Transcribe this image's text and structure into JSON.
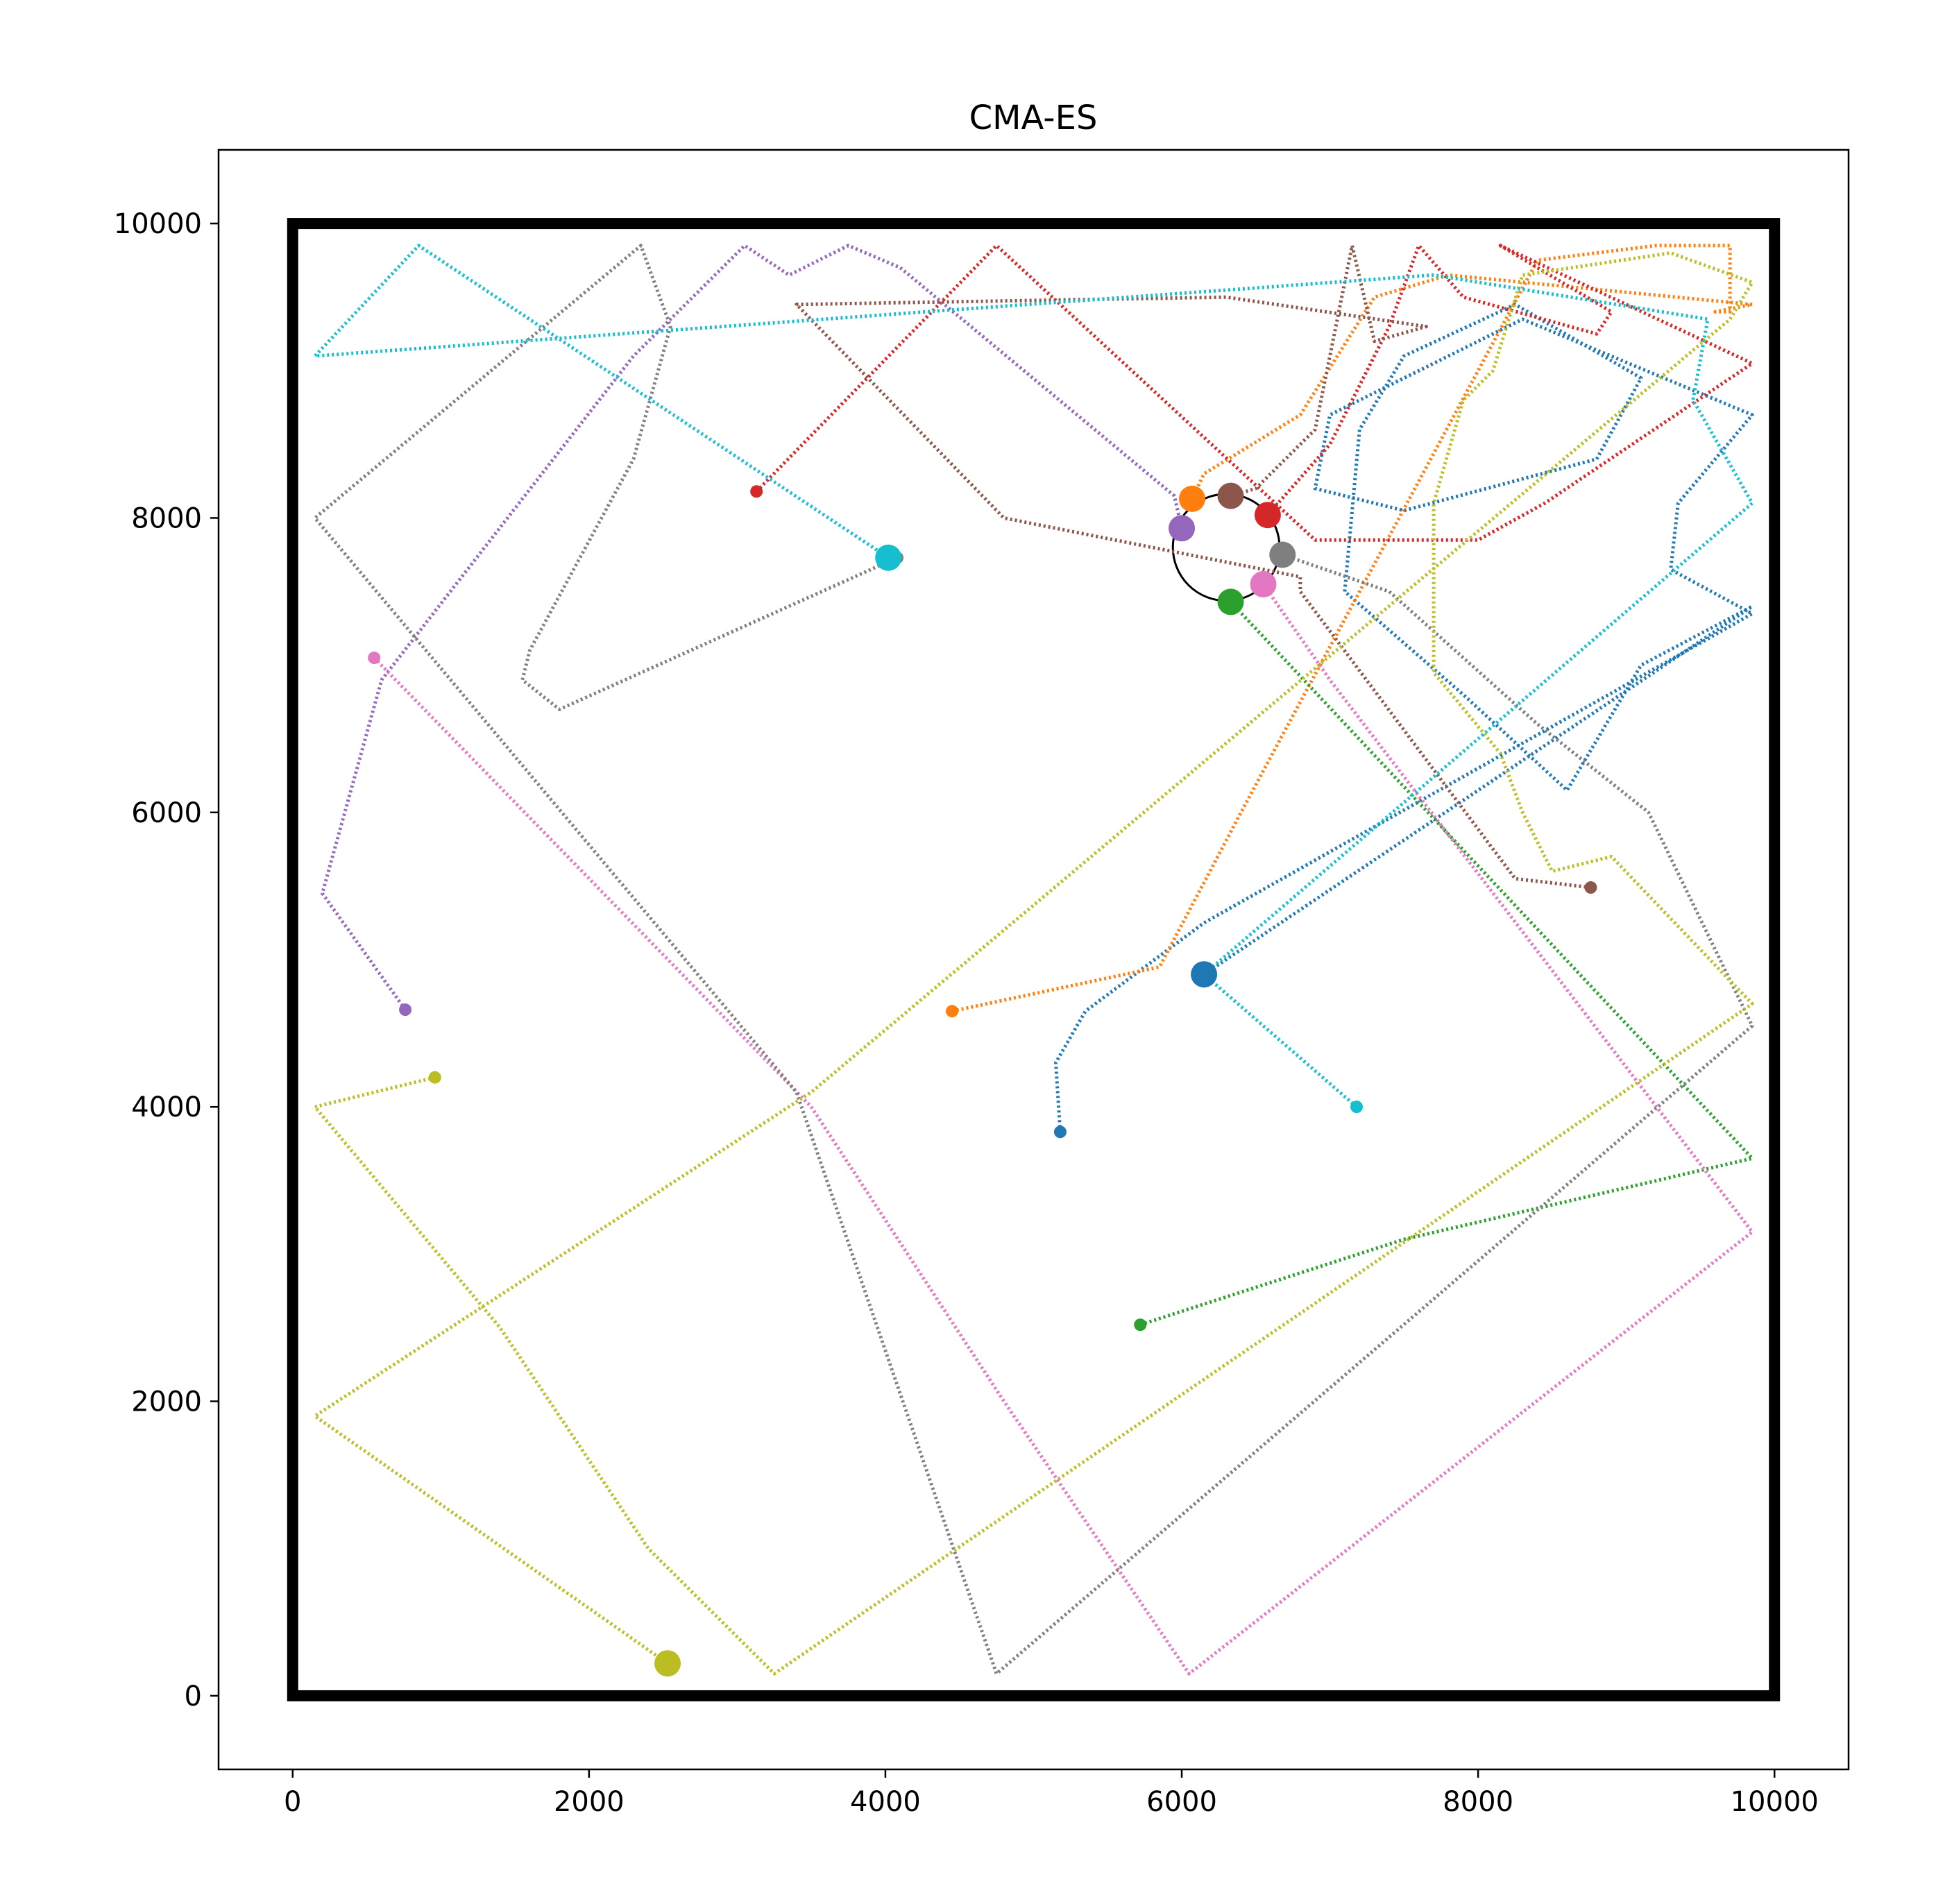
{
  "chart_data": {
    "type": "line",
    "title": "CMA-ES",
    "xlabel": "",
    "ylabel": "",
    "xlim": [
      -500,
      10500
    ],
    "ylim": [
      -500,
      10500
    ],
    "xticks": [
      0,
      2000,
      4000,
      6000,
      8000,
      10000
    ],
    "yticks": [
      0,
      2000,
      4000,
      6000,
      8000,
      10000
    ],
    "x_tick_labels": [
      "0",
      "2000",
      "4000",
      "6000",
      "8000",
      "10000"
    ],
    "y_tick_labels": [
      "0",
      "2000",
      "4000",
      "6000",
      "8000",
      "10000"
    ],
    "grid": false,
    "legend": "none",
    "arena": {
      "x": [
        0,
        10000
      ],
      "y": [
        0,
        10000
      ],
      "color": "#000000"
    },
    "target_circle": {
      "center": [
        6300,
        7800
      ],
      "radius": 360,
      "color": "#000000"
    },
    "series": [
      {
        "color": "#1f77b4",
        "start": [
          5180,
          3830
        ],
        "end": [
          6150,
          4900
        ],
        "path": [
          [
            5180,
            3830
          ],
          [
            5150,
            4300
          ],
          [
            5350,
            4650
          ],
          [
            6150,
            5250
          ],
          [
            9850,
            7350
          ],
          [
            9300,
            7650
          ],
          [
            9350,
            8100
          ],
          [
            9850,
            8700
          ],
          [
            8300,
            9350
          ],
          [
            7000,
            8700
          ],
          [
            6900,
            8200
          ],
          [
            7500,
            8050
          ],
          [
            8800,
            8400
          ],
          [
            9100,
            8950
          ],
          [
            8250,
            9450
          ],
          [
            7500,
            9100
          ],
          [
            7200,
            8600
          ],
          [
            7100,
            7500
          ],
          [
            7900,
            6800
          ],
          [
            8600,
            6150
          ],
          [
            9100,
            7000
          ],
          [
            9850,
            7400
          ],
          [
            6150,
            4900
          ]
        ]
      },
      {
        "color": "#ff7f0e",
        "start": [
          4450,
          4650
        ],
        "end": [
          6070,
          8130
        ],
        "path": [
          [
            4450,
            4650
          ],
          [
            5850,
            4950
          ],
          [
            6400,
            6000
          ],
          [
            8400,
            9750
          ],
          [
            9200,
            9850
          ],
          [
            9700,
            9850
          ],
          [
            9700,
            9400
          ],
          [
            9600,
            9400
          ],
          [
            9850,
            9450
          ],
          [
            7800,
            9650
          ],
          [
            7300,
            9500
          ],
          [
            6800,
            8700
          ],
          [
            6150,
            8300
          ],
          [
            6070,
            8130
          ]
        ]
      },
      {
        "color": "#2ca02c",
        "start": [
          5720,
          2520
        ],
        "end": [
          6330,
          7430
        ],
        "path": [
          [
            5720,
            2520
          ],
          [
            7500,
            3100
          ],
          [
            9850,
            3650
          ],
          [
            6330,
            7430
          ]
        ]
      },
      {
        "color": "#d62728",
        "start": [
          3130,
          8180
        ],
        "end": [
          6580,
          8020
        ],
        "path": [
          [
            3130,
            8180
          ],
          [
            4750,
            9850
          ],
          [
            6900,
            7850
          ],
          [
            8000,
            7850
          ],
          [
            8450,
            8100
          ],
          [
            9850,
            9050
          ],
          [
            8150,
            9850
          ],
          [
            8900,
            9400
          ],
          [
            8800,
            9250
          ],
          [
            7900,
            9500
          ],
          [
            7600,
            9850
          ],
          [
            7400,
            9300
          ],
          [
            7000,
            8500
          ],
          [
            6580,
            8020
          ]
        ]
      },
      {
        "color": "#9467bd",
        "start": [
          760,
          4660
        ],
        "end": [
          6000,
          7930
        ],
        "path": [
          [
            760,
            4660
          ],
          [
            200,
            5450
          ],
          [
            600,
            6900
          ],
          [
            2300,
            9100
          ],
          [
            3050,
            9850
          ],
          [
            3350,
            9650
          ],
          [
            3750,
            9850
          ],
          [
            4100,
            9700
          ],
          [
            5950,
            8150
          ],
          [
            6000,
            7930
          ]
        ]
      },
      {
        "color": "#8c564b",
        "start": [
          8760,
          5490
        ],
        "end": [
          6330,
          8150
        ],
        "path": [
          [
            8760,
            5490
          ],
          [
            8250,
            5550
          ],
          [
            6800,
            7500
          ],
          [
            6800,
            7600
          ],
          [
            4800,
            8000
          ],
          [
            3400,
            9450
          ],
          [
            6300,
            9500
          ],
          [
            7650,
            9300
          ],
          [
            7300,
            9200
          ],
          [
            7150,
            9850
          ],
          [
            6900,
            8600
          ],
          [
            6500,
            8200
          ],
          [
            6330,
            8150
          ]
        ]
      },
      {
        "color": "#e377c2",
        "start": [
          550,
          7050
        ],
        "end": [
          6550,
          7550
        ],
        "path": [
          [
            550,
            7050
          ],
          [
            3500,
            4000
          ],
          [
            4800,
            2000
          ],
          [
            6050,
            150
          ],
          [
            9850,
            3150
          ],
          [
            7000,
            6900
          ],
          [
            6550,
            7550
          ]
        ]
      },
      {
        "color": "#7f7f7f",
        "start": [
          4080,
          7730
        ],
        "end": [
          6680,
          7750
        ],
        "path": [
          [
            4080,
            7730
          ],
          [
            1800,
            6700
          ],
          [
            1550,
            6900
          ],
          [
            1600,
            7100
          ],
          [
            2300,
            8400
          ],
          [
            2550,
            9300
          ],
          [
            2350,
            9850
          ],
          [
            150,
            8000
          ],
          [
            3400,
            4100
          ],
          [
            4750,
            150
          ],
          [
            9850,
            4550
          ],
          [
            9150,
            6000
          ],
          [
            8400,
            6600
          ],
          [
            7400,
            7500
          ],
          [
            6680,
            7750
          ]
        ]
      },
      {
        "color": "#bcbd22",
        "start": [
          960,
          4200
        ],
        "end": [
          2530,
          220
        ],
        "path": [
          [
            960,
            4200
          ],
          [
            150,
            4000
          ],
          [
            1400,
            2500
          ],
          [
            2400,
            1000
          ],
          [
            3250,
            150
          ],
          [
            9850,
            4700
          ],
          [
            8900,
            5700
          ],
          [
            8500,
            5600
          ],
          [
            8300,
            6000
          ],
          [
            8150,
            6400
          ],
          [
            7700,
            6950
          ],
          [
            7700,
            8100
          ],
          [
            7900,
            8800
          ],
          [
            8100,
            9000
          ],
          [
            8300,
            9650
          ],
          [
            9300,
            9800
          ],
          [
            9850,
            9600
          ],
          [
            9700,
            9350
          ],
          [
            3500,
            4100
          ],
          [
            150,
            1900
          ],
          [
            2530,
            220
          ]
        ]
      },
      {
        "color": "#17becf",
        "start": [
          7180,
          4000
        ],
        "end": [
          4020,
          7730
        ],
        "path": [
          [
            7180,
            4000
          ],
          [
            6150,
            4900
          ],
          [
            9850,
            8100
          ],
          [
            9450,
            8800
          ],
          [
            9550,
            9350
          ],
          [
            7700,
            9650
          ],
          [
            150,
            9100
          ],
          [
            850,
            9850
          ],
          [
            4020,
            7730
          ]
        ]
      }
    ]
  }
}
